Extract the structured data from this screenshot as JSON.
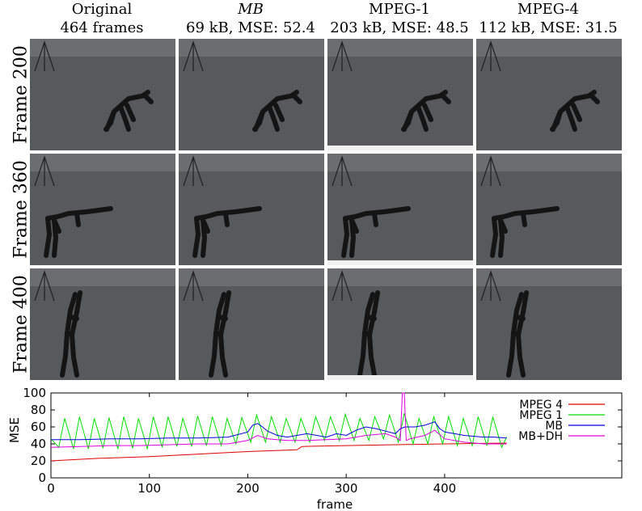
{
  "columns": [
    {
      "line1": "Original",
      "line2": "464 frames",
      "italic": false
    },
    {
      "line1": "MB",
      "line2": "69 kB, MSE: 52.4",
      "italic": true
    },
    {
      "line1": "MPEG-1",
      "line2": "203 kB, MSE: 48.5",
      "italic": false
    },
    {
      "line1": "MPEG-4",
      "line2": "112 kB, MSE: 31.5",
      "italic": false
    }
  ],
  "rows": [
    {
      "label": "Frame 200",
      "pose": "bend"
    },
    {
      "label": "Frame 360",
      "pose": "reach"
    },
    {
      "label": "Frame 400",
      "pose": "arms-up"
    }
  ],
  "colors": {
    "mpeg4": "#e00000",
    "mpeg1": "#00e000",
    "mb": "#0000e0",
    "mbdh": "#e000e0",
    "field": "#58595b",
    "horizon": "#6c6d6f",
    "figure": "#141414"
  },
  "chart_data": {
    "type": "line",
    "xlabel": "frame",
    "ylabel": "MSE",
    "xlim": [
      0,
      580
    ],
    "ylim": [
      0,
      100
    ],
    "xticks": [
      0,
      100,
      200,
      300,
      400
    ],
    "yticks": [
      0,
      20,
      40,
      60,
      80,
      100
    ],
    "grid": false,
    "legend_position": "top-right",
    "series": [
      {
        "name": "MPEG 4",
        "color": "#e00000",
        "x": [
          0,
          50,
          100,
          150,
          200,
          250,
          255,
          300,
          350,
          400,
          463
        ],
        "y": [
          20,
          23,
          25,
          28,
          31,
          33,
          37,
          38,
          39,
          40,
          41
        ]
      },
      {
        "name": "MPEG 1",
        "color": "#00e000",
        "x": [
          0,
          8,
          14,
          23,
          29,
          38,
          44,
          53,
          59,
          68,
          74,
          83,
          89,
          98,
          104,
          113,
          119,
          128,
          134,
          143,
          149,
          158,
          164,
          173,
          179,
          188,
          194,
          203,
          209,
          218,
          224,
          233,
          239,
          248,
          254,
          263,
          269,
          278,
          284,
          293,
          299,
          308,
          314,
          323,
          329,
          338,
          344,
          353,
          359,
          368,
          374,
          383,
          389,
          398,
          404,
          413,
          419,
          428,
          434,
          443,
          449,
          458,
          463
        ],
        "y": [
          46,
          36,
          70,
          34,
          72,
          34,
          70,
          35,
          71,
          34,
          72,
          35,
          70,
          34,
          72,
          36,
          72,
          37,
          70,
          37,
          73,
          38,
          72,
          38,
          70,
          40,
          71,
          42,
          74,
          42,
          72,
          42,
          70,
          42,
          70,
          42,
          72,
          44,
          72,
          44,
          75,
          44,
          70,
          44,
          72,
          46,
          74,
          42,
          76,
          40,
          70,
          40,
          72,
          40,
          72,
          38,
          70,
          38,
          72,
          38,
          72,
          36,
          48
        ]
      },
      {
        "name": "MB",
        "color": "#0000e0",
        "x": [
          0,
          30,
          60,
          90,
          120,
          150,
          180,
          200,
          205,
          210,
          215,
          220,
          230,
          240,
          250,
          260,
          270,
          280,
          290,
          300,
          310,
          320,
          330,
          340,
          350,
          355,
          360,
          370,
          380,
          390,
          395,
          400,
          410,
          420,
          430,
          440,
          450,
          463
        ],
        "y": [
          45,
          45,
          46,
          46,
          47,
          47,
          48,
          54,
          62,
          64,
          60,
          55,
          50,
          48,
          50,
          52,
          50,
          48,
          52,
          50,
          56,
          60,
          58,
          55,
          52,
          58,
          60,
          60,
          62,
          66,
          58,
          54,
          52,
          50,
          49,
          48,
          48,
          47
        ]
      },
      {
        "name": "MB+DH",
        "color": "#e000e0",
        "x": [
          0,
          30,
          60,
          90,
          120,
          150,
          180,
          200,
          210,
          220,
          240,
          260,
          280,
          300,
          320,
          340,
          350,
          355,
          357,
          358,
          359,
          361,
          365,
          380,
          390,
          400,
          420,
          440,
          463
        ],
        "y": [
          36,
          37,
          38,
          38,
          39,
          40,
          40,
          44,
          50,
          46,
          44,
          44,
          45,
          46,
          50,
          52,
          48,
          44,
          100,
          100,
          100,
          44,
          46,
          50,
          56,
          46,
          42,
          40,
          40
        ]
      }
    ]
  }
}
